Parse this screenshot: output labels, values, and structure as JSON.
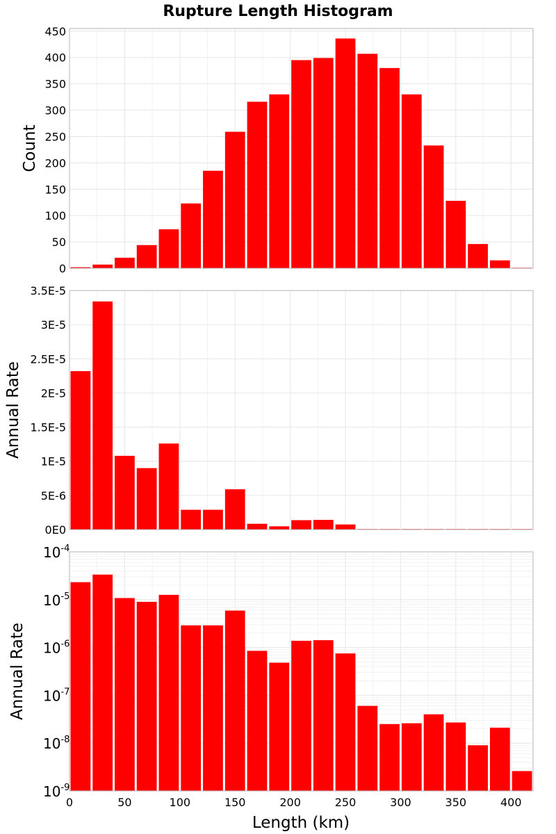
{
  "chart_data": {
    "title": "Rupture Length Histogram",
    "xlabel": "Length (km)",
    "xlim": [
      0,
      420
    ],
    "bin_width": 20,
    "bin_centers": [
      10,
      30,
      50,
      70,
      90,
      110,
      130,
      150,
      170,
      190,
      210,
      230,
      250,
      270,
      290,
      310,
      330,
      350,
      370,
      390,
      410
    ],
    "x_ticks": [
      "0",
      "50",
      "100",
      "150",
      "200",
      "250",
      "300",
      "350",
      "400"
    ],
    "colors": {
      "bar": "#ff0000"
    },
    "grid": true,
    "panels": [
      {
        "type": "bar",
        "ylabel": "Count",
        "scale": "linear",
        "ylim": [
          0,
          455
        ],
        "y_ticks": [
          "0",
          "50",
          "100",
          "150",
          "200",
          "250",
          "300",
          "350",
          "400",
          "450"
        ],
        "values": [
          2,
          7,
          20,
          44,
          74,
          123,
          185,
          259,
          316,
          330,
          395,
          399,
          436,
          407,
          380,
          330,
          233,
          128,
          46,
          15,
          1
        ]
      },
      {
        "type": "bar",
        "ylabel": "Annual Rate",
        "scale": "linear",
        "ylim": [
          0,
          3.5e-05
        ],
        "y_ticks": [
          "0E0",
          "5E-6",
          "1E-5",
          "1.5E-5",
          "2E-5",
          "2.5E-5",
          "3E-5",
          "3.5E-5"
        ],
        "values": [
          2.32e-05,
          3.34e-05,
          1.08e-05,
          9e-06,
          1.26e-05,
          2.9e-06,
          2.9e-06,
          5.9e-06,
          8.5e-07,
          4.8e-07,
          1.38e-06,
          1.42e-06,
          7.5e-07,
          6e-08,
          2.5e-08,
          2.6e-08,
          4e-08,
          2.7e-08,
          9e-09,
          2.1e-08,
          2.6e-09
        ]
      },
      {
        "type": "bar",
        "ylabel": "Annual Rate",
        "scale": "log",
        "ylim": [
          1e-09,
          0.0001
        ],
        "y_ticks": [
          {
            "base": "10",
            "exp": "-9"
          },
          {
            "base": "10",
            "exp": "-8"
          },
          {
            "base": "10",
            "exp": "-7"
          },
          {
            "base": "10",
            "exp": "-6"
          },
          {
            "base": "10",
            "exp": "-5"
          },
          {
            "base": "10",
            "exp": "-4"
          }
        ],
        "values": [
          2.32e-05,
          3.34e-05,
          1.08e-05,
          9e-06,
          1.26e-05,
          2.9e-06,
          2.9e-06,
          5.9e-06,
          8.5e-07,
          4.8e-07,
          1.38e-06,
          1.42e-06,
          7.5e-07,
          6e-08,
          2.5e-08,
          2.6e-08,
          4e-08,
          2.7e-08,
          9e-09,
          2.1e-08,
          2.6e-09
        ]
      }
    ]
  }
}
